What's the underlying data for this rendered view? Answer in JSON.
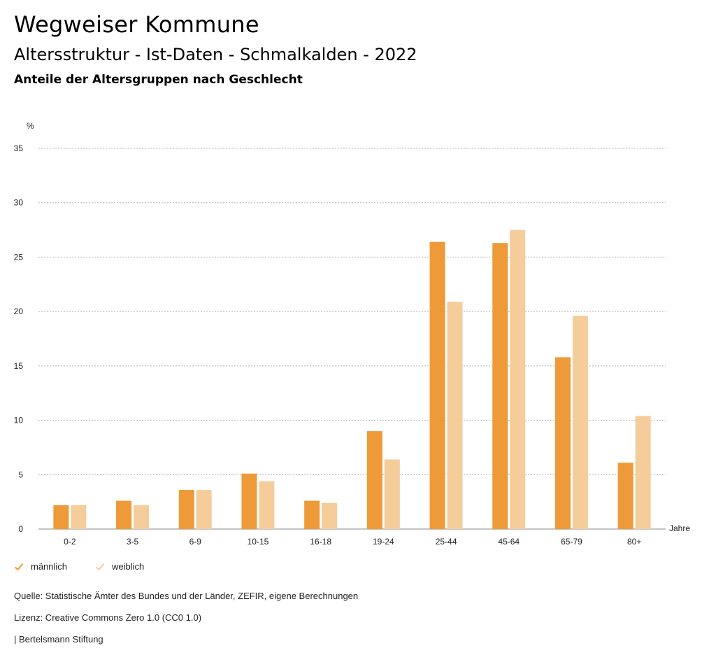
{
  "header": {
    "title": "Wegweiser Kommune",
    "subtitle": "Altersstruktur - Ist-Daten - Schmalkalden - 2022",
    "subsubtitle": "Anteile der Altersgruppen nach Geschlecht"
  },
  "chart_data": {
    "type": "bar",
    "ylabel": "%",
    "xlabel": "Jahre",
    "ylim": [
      0,
      35
    ],
    "yticks": [
      0,
      5,
      10,
      15,
      20,
      25,
      30,
      35
    ],
    "grid": true,
    "legend_position": "bottom-left",
    "categories": [
      "0-2",
      "3-5",
      "6-9",
      "10-15",
      "16-18",
      "19-24",
      "25-44",
      "45-64",
      "65-79",
      "80+"
    ],
    "series": [
      {
        "name": "männlich",
        "color": "#ee9a38",
        "values": [
          2.2,
          2.6,
          3.6,
          5.1,
          2.6,
          9.0,
          26.4,
          26.3,
          15.8,
          6.1
        ]
      },
      {
        "name": "weiblich",
        "color": "#f5cd9b",
        "values": [
          2.2,
          2.2,
          3.6,
          4.4,
          2.4,
          6.4,
          20.9,
          27.5,
          19.6,
          10.4
        ]
      }
    ]
  },
  "legend": {
    "items": [
      {
        "label": "männlich",
        "color": "#ee9a38"
      },
      {
        "label": "weiblich",
        "color": "#f5cd9b"
      }
    ]
  },
  "footer": {
    "source": "Quelle: Statistische Ämter des Bundes und der Länder, ZEFIR, eigene Berechnungen",
    "license": "Lizenz: Creative Commons Zero 1.0 (CC0 1.0)",
    "publisher": "| Bertelsmann Stiftung"
  }
}
